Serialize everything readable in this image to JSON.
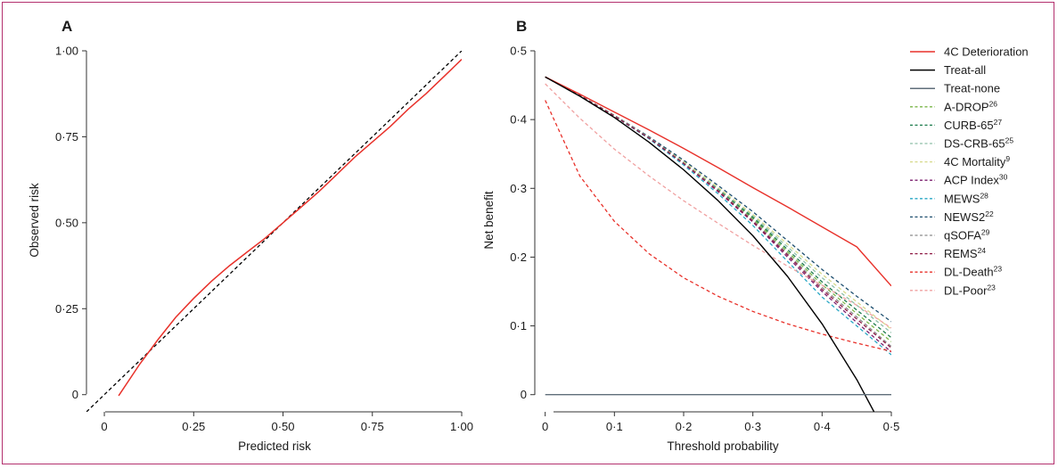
{
  "colors": {
    "frame": "#b3306e"
  },
  "chart_data": [
    {
      "panel": "A",
      "type": "line",
      "xlabel": "Predicted risk",
      "ylabel": "Observed risk",
      "xlim": [
        -0.05,
        1.0
      ],
      "ylim": [
        -0.05,
        1.0
      ],
      "x_ticks": [
        {
          "value": 0,
          "label": "0"
        },
        {
          "value": 0.25,
          "label": "0·25"
        },
        {
          "value": 0.5,
          "label": "0·50"
        },
        {
          "value": 0.75,
          "label": "0·75"
        },
        {
          "value": 1.0,
          "label": "1·00"
        }
      ],
      "y_ticks": [
        {
          "value": 0,
          "label": "0"
        },
        {
          "value": 0.25,
          "label": "0·25"
        },
        {
          "value": 0.5,
          "label": "0·50"
        },
        {
          "value": 0.75,
          "label": "0·75"
        },
        {
          "value": 1.0,
          "label": "1·00"
        }
      ],
      "series": [
        {
          "style": "dashed",
          "color": "#000000",
          "x": [
            -0.05,
            1.0
          ],
          "y": [
            -0.05,
            1.0
          ]
        },
        {
          "style": "solid",
          "color": "#e8312a",
          "x": [
            0.04,
            0.1,
            0.15,
            0.2,
            0.25,
            0.3,
            0.35,
            0.4,
            0.45,
            0.5,
            0.55,
            0.6,
            0.65,
            0.7,
            0.75,
            0.8,
            0.85,
            0.9,
            0.95,
            1.0
          ],
          "y": [
            -0.003,
            0.09,
            0.16,
            0.225,
            0.28,
            0.33,
            0.375,
            0.415,
            0.455,
            0.5,
            0.545,
            0.59,
            0.64,
            0.69,
            0.735,
            0.78,
            0.83,
            0.875,
            0.925,
            0.975
          ]
        }
      ]
    },
    {
      "panel": "B",
      "type": "line",
      "xlabel": "Threshold probability",
      "ylabel": "Net benefit",
      "xlim": [
        -0.015,
        0.5
      ],
      "ylim": [
        -0.025,
        0.5
      ],
      "x_ticks": [
        {
          "value": 0,
          "label": "0"
        },
        {
          "value": 0.1,
          "label": "0·1"
        },
        {
          "value": 0.2,
          "label": "0·2"
        },
        {
          "value": 0.3,
          "label": "0·3"
        },
        {
          "value": 0.4,
          "label": "0·4"
        },
        {
          "value": 0.5,
          "label": "0·5"
        }
      ],
      "y_ticks": [
        {
          "value": 0,
          "label": "0"
        },
        {
          "value": 0.1,
          "label": "0·1"
        },
        {
          "value": 0.2,
          "label": "0·2"
        },
        {
          "value": 0.3,
          "label": "0·3"
        },
        {
          "value": 0.4,
          "label": "0·4"
        },
        {
          "value": 0.5,
          "label": "0·5"
        }
      ],
      "x": [
        0,
        0.05,
        0.1,
        0.15,
        0.2,
        0.25,
        0.3,
        0.35,
        0.4,
        0.45,
        0.5
      ],
      "legend_position": "right",
      "series": [
        {
          "name": "4C Deterioration",
          "sup": "",
          "color": "#e8312a",
          "style": "solid",
          "values": [
            0.462,
            0.437,
            0.411,
            0.385,
            0.358,
            0.33,
            0.301,
            0.273,
            0.244,
            0.215,
            0.158
          ]
        },
        {
          "name": "Treat-all",
          "sup": "",
          "color": "#000000",
          "style": "solid",
          "x": [
            0,
            0.05,
            0.1,
            0.15,
            0.2,
            0.25,
            0.3,
            0.35,
            0.4,
            0.45,
            0.475
          ],
          "values": [
            0.462,
            0.434,
            0.403,
            0.367,
            0.327,
            0.282,
            0.231,
            0.172,
            0.103,
            0.022,
            -0.025
          ]
        },
        {
          "name": "Treat-none",
          "sup": "",
          "color": "#5f6e7a",
          "style": "solid",
          "x": [
            0,
            0.5
          ],
          "values": [
            0,
            0
          ]
        },
        {
          "name": "A-DROP",
          "sup": "26",
          "color": "#7ab648",
          "style": "dashed",
          "values": [
            0.462,
            0.435,
            0.406,
            0.374,
            0.338,
            0.298,
            0.256,
            0.208,
            0.16,
            0.118,
            0.077
          ]
        },
        {
          "name": "CURB-65",
          "sup": "27",
          "color": "#1a7a4a",
          "style": "dashed",
          "values": [
            0.462,
            0.435,
            0.406,
            0.374,
            0.338,
            0.299,
            0.258,
            0.211,
            0.164,
            0.123,
            0.083
          ]
        },
        {
          "name": "DS-CRB-65",
          "sup": "25",
          "color": "#8fbfa8",
          "style": "dashed",
          "values": [
            0.462,
            0.435,
            0.406,
            0.374,
            0.338,
            0.3,
            0.26,
            0.215,
            0.17,
            0.13,
            0.09
          ]
        },
        {
          "name": "4C Mortality",
          "sup": "9",
          "color": "#d6d98a",
          "style": "dashed",
          "values": [
            0.462,
            0.435,
            0.406,
            0.375,
            0.339,
            0.301,
            0.262,
            0.219,
            0.175,
            0.135,
            0.095
          ]
        },
        {
          "name": "ACP Index",
          "sup": "30",
          "color": "#7b1f6e",
          "style": "dashed",
          "values": [
            0.462,
            0.435,
            0.405,
            0.373,
            0.336,
            0.295,
            0.251,
            0.2,
            0.15,
            0.105,
            0.062
          ]
        },
        {
          "name": "MEWS",
          "sup": "28",
          "color": "#27a6c4",
          "style": "dashed",
          "values": [
            0.462,
            0.435,
            0.405,
            0.372,
            0.334,
            0.292,
            0.246,
            0.194,
            0.142,
            0.1,
            0.058
          ]
        },
        {
          "name": "NEWS2",
          "sup": "22",
          "color": "#1d4e6e",
          "style": "dashed",
          "values": [
            0.462,
            0.435,
            0.406,
            0.375,
            0.341,
            0.304,
            0.266,
            0.224,
            0.182,
            0.143,
            0.106
          ]
        },
        {
          "name": "qSOFA",
          "sup": "29",
          "color": "#8a8a8a",
          "style": "dashed",
          "values": [
            0.462,
            0.435,
            0.406,
            0.374,
            0.337,
            0.297,
            0.254,
            0.205,
            0.156,
            0.113,
            0.07
          ]
        },
        {
          "name": "REMS",
          "sup": "24",
          "color": "#8e1a44",
          "style": "dashed",
          "values": [
            0.462,
            0.435,
            0.405,
            0.373,
            0.336,
            0.296,
            0.252,
            0.203,
            0.153,
            0.11,
            0.068
          ]
        },
        {
          "name": "DL-Death",
          "sup": "23",
          "color": "#e8312a",
          "style": "dashed",
          "values": [
            0.428,
            0.318,
            0.252,
            0.205,
            0.17,
            0.143,
            0.121,
            0.103,
            0.088,
            0.075,
            0.063
          ]
        },
        {
          "name": "DL-Poor",
          "sup": "23",
          "color": "#f0a0a0",
          "style": "dashed",
          "values": [
            0.452,
            0.402,
            0.357,
            0.318,
            0.282,
            0.249,
            0.217,
            0.187,
            0.159,
            0.13,
            0.097
          ]
        }
      ]
    }
  ]
}
